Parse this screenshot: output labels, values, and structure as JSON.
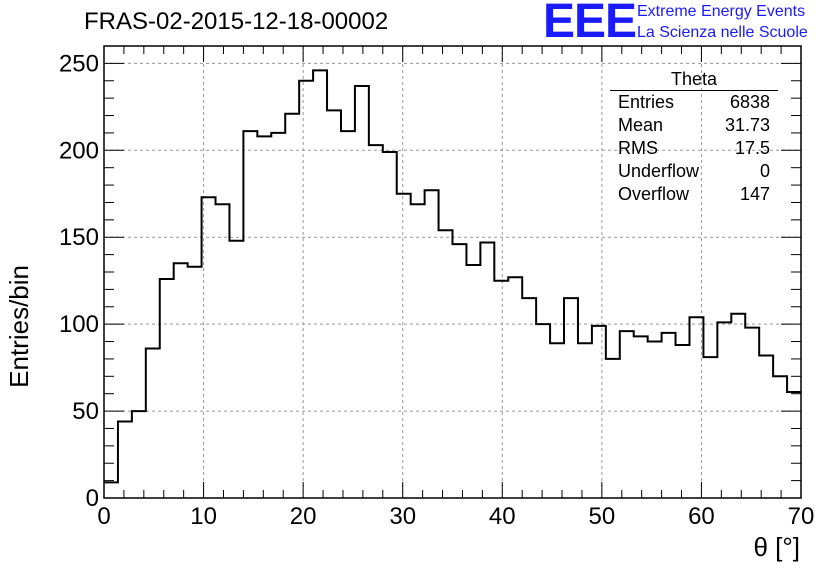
{
  "header": {
    "title": "FRAS-02-2015-12-18-00002"
  },
  "logo": {
    "mark": "EEE",
    "line1": "Extreme Energy Events",
    "line2": "La Scienza nelle Scuole",
    "color": "#1a1aff"
  },
  "stats": {
    "title": "Theta",
    "rows": [
      {
        "label": "Entries",
        "value": "6838"
      },
      {
        "label": "Mean",
        "value": "31.73"
      },
      {
        "label": "RMS",
        "value": "17.5"
      },
      {
        "label": "Underflow",
        "value": "0"
      },
      {
        "label": "Overflow",
        "value": "147"
      }
    ]
  },
  "chart_data": {
    "type": "bar",
    "style": "step-histogram",
    "title": "FRAS-02-2015-12-18-00002",
    "xlabel": "θ [°]",
    "ylabel": "Entries/bin",
    "xlim": [
      0,
      70
    ],
    "ylim": [
      0,
      260
    ],
    "bin_width": 1.4,
    "x_ticks": [
      0,
      10,
      20,
      30,
      40,
      50,
      60,
      70
    ],
    "y_ticks": [
      0,
      50,
      100,
      150,
      200,
      250
    ],
    "grid": true,
    "legend": "top-right",
    "values": [
      9,
      44,
      50,
      86,
      126,
      135,
      133,
      173,
      169,
      148,
      211,
      208,
      210,
      221,
      240,
      246,
      223,
      211,
      237,
      203,
      199,
      175,
      169,
      177,
      154,
      146,
      134,
      147,
      125,
      127,
      115,
      100,
      89,
      115,
      89,
      99,
      80,
      96,
      93,
      90,
      95,
      88,
      104,
      81,
      101,
      106,
      98,
      82,
      70,
      61
    ]
  }
}
